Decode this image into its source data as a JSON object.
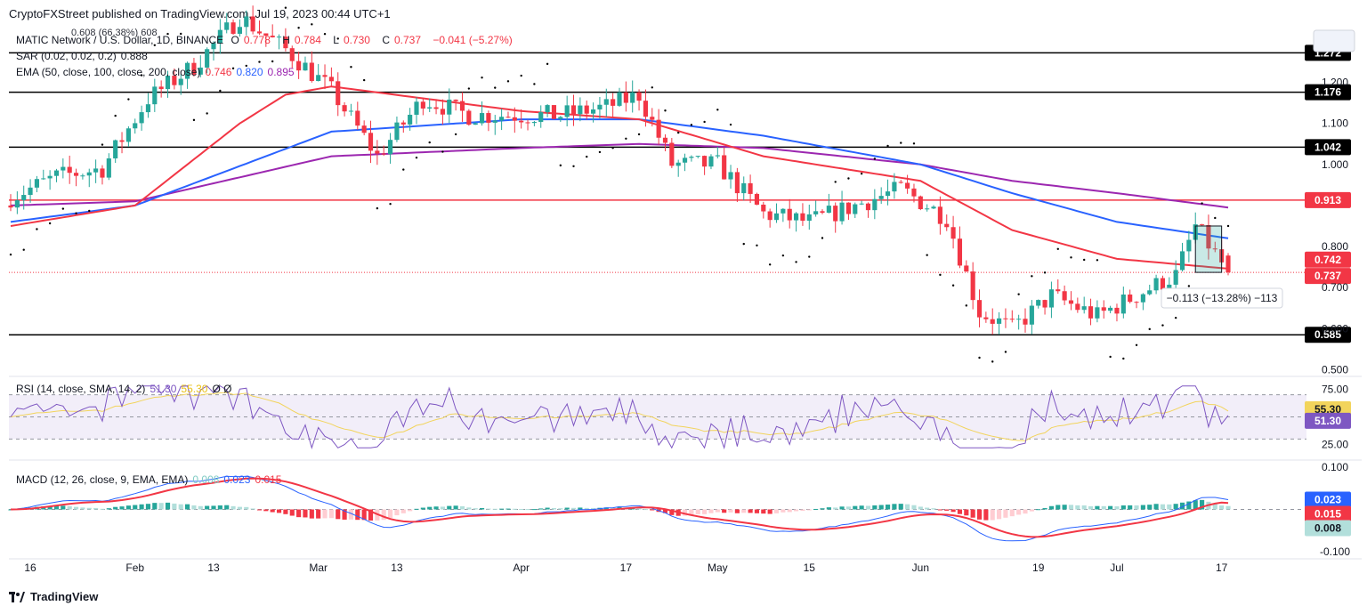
{
  "header": {
    "published": "CryptoFXStreet published on TradingView.com, Jul 19, 2023 00:44 UTC+1"
  },
  "legend": {
    "symbol": "MATIC Network / U.S. Dollar, 1D, BINANCE",
    "o_label": "O",
    "o": "0.778",
    "h_label": "H",
    "h": "0.784",
    "l_label": "L",
    "l": "0.730",
    "c_label": "C",
    "c": "0.737",
    "change": "−0.041 (−5.27%)",
    "overlay_label": "0.608 (66.38%) 608",
    "sar_label": "SAR (0.02, 0.02, 0.2)",
    "sar_value": "0.888",
    "ema_label": "EMA (50, close, 100, close, 200, close)",
    "ema50": "0.746",
    "ema100": "0.820",
    "ema200": "0.895"
  },
  "rsi_legend": {
    "label": "RSI (14, close, SMA, 14, 2)",
    "rsi": "51.30",
    "sma": "55.30",
    "extra": "Ø Ø"
  },
  "macd_legend": {
    "label": "MACD (12, 26, close, 9, EMA, EMA)",
    "hist": "0.008",
    "macd": "0.023",
    "signal": "0.015"
  },
  "measure_label": "−0.113 (−13.28%) −113",
  "footer": {
    "brand": "TradingView"
  },
  "colors": {
    "up": "#26a69a",
    "down": "#f23645",
    "ema50": "#f23645",
    "ema100": "#2962ff",
    "ema200": "#9c27b0",
    "rsi": "#7e57c2",
    "rsi_sma": "#f2d45c",
    "macd": "#2962ff",
    "signal": "#f23645",
    "hist_up": "#26a69a",
    "hist_up_light": "#b2dfdb",
    "hist_down": "#f23645",
    "hist_down_light": "#ffcdd2"
  },
  "chart_data": {
    "type": "candlestick",
    "symbol": "MATIC Network / U.S. Dollar",
    "timeframe": "1D",
    "x_ticks": [
      "16",
      "Feb",
      "13",
      "Mar",
      "13",
      "Apr",
      "17",
      "May",
      "15",
      "Jun",
      "19",
      "Jul",
      "17"
    ],
    "price_axis": {
      "ylim": [
        0.49,
        1.34
      ],
      "ticks": [
        "1.300",
        "1.200",
        "1.100",
        "1.000",
        "0.800",
        "0.700",
        "0.600",
        "0.500"
      ]
    },
    "horizontal_levels": [
      {
        "value": 1.272,
        "label": "1.272",
        "color": "#000000"
      },
      {
        "value": 1.176,
        "label": "1.176",
        "color": "#000000"
      },
      {
        "value": 1.042,
        "label": "1.042",
        "color": "#000000"
      },
      {
        "value": 0.913,
        "label": "0.913",
        "color": "#f23645"
      },
      {
        "value": 0.585,
        "label": "0.585",
        "color": "#000000"
      }
    ],
    "price_badges": [
      {
        "value": 0.742,
        "label": "0.742",
        "color": "#f23645"
      },
      {
        "value": 0.737,
        "label": "0.737",
        "color": "#f23645"
      }
    ],
    "anchors": [
      {
        "x": "Jan 13",
        "close": 0.92
      },
      {
        "x": "Jan 20",
        "close": 0.97
      },
      {
        "x": "Jan 27",
        "close": 0.99
      },
      {
        "x": "Feb 3",
        "close": 1.16
      },
      {
        "x": "Feb 10",
        "close": 1.24
      },
      {
        "x": "Feb 17",
        "close": 1.36
      },
      {
        "x": "Feb 24",
        "close": 1.28
      },
      {
        "x": "Mar 3",
        "close": 1.18
      },
      {
        "x": "Mar 10",
        "close": 1.02
      },
      {
        "x": "Mar 17",
        "close": 1.16
      },
      {
        "x": "Mar 24",
        "close": 1.12
      },
      {
        "x": "Mar 31",
        "close": 1.12
      },
      {
        "x": "Apr 7",
        "close": 1.12
      },
      {
        "x": "Apr 14",
        "close": 1.14
      },
      {
        "x": "Apr 19",
        "close": 1.17
      },
      {
        "x": "Apr 24",
        "close": 1.0
      },
      {
        "x": "May 1",
        "close": 1.0
      },
      {
        "x": "May 8",
        "close": 0.88
      },
      {
        "x": "May 15",
        "close": 0.86
      },
      {
        "x": "May 22",
        "close": 0.9
      },
      {
        "x": "May 29",
        "close": 0.94
      },
      {
        "x": "Jun 5",
        "close": 0.87
      },
      {
        "x": "Jun 10",
        "close": 0.64
      },
      {
        "x": "Jun 15",
        "close": 0.6
      },
      {
        "x": "Jun 21",
        "close": 0.68
      },
      {
        "x": "Jun 28",
        "close": 0.63
      },
      {
        "x": "Jul 5",
        "close": 0.69
      },
      {
        "x": "Jul 10",
        "close": 0.73
      },
      {
        "x": "Jul 13",
        "close": 0.85
      },
      {
        "x": "Jul 18",
        "close": 0.737
      }
    ],
    "ema50_anchors": [
      {
        "x": "Jan 13",
        "v": 0.85
      },
      {
        "x": "Feb 1",
        "v": 0.9
      },
      {
        "x": "Feb 17",
        "v": 1.1
      },
      {
        "x": "Feb 24",
        "v": 1.17
      },
      {
        "x": "Mar 3",
        "v": 1.19
      },
      {
        "x": "Apr 1",
        "v": 1.13
      },
      {
        "x": "Apr 19",
        "v": 1.11
      },
      {
        "x": "May 8",
        "v": 1.02
      },
      {
        "x": "Jun 1",
        "v": 0.96
      },
      {
        "x": "Jun 15",
        "v": 0.84
      },
      {
        "x": "Jul 1",
        "v": 0.77
      },
      {
        "x": "Jul 18",
        "v": 0.746
      }
    ],
    "ema100_anchors": [
      {
        "x": "Jan 13",
        "v": 0.86
      },
      {
        "x": "Feb 1",
        "v": 0.9
      },
      {
        "x": "Mar 3",
        "v": 1.08
      },
      {
        "x": "Apr 1",
        "v": 1.11
      },
      {
        "x": "Apr 19",
        "v": 1.11
      },
      {
        "x": "May 8",
        "v": 1.07
      },
      {
        "x": "Jun 1",
        "v": 1.0
      },
      {
        "x": "Jun 15",
        "v": 0.93
      },
      {
        "x": "Jul 1",
        "v": 0.86
      },
      {
        "x": "Jul 18",
        "v": 0.82
      }
    ],
    "ema200_anchors": [
      {
        "x": "Jan 13",
        "v": 0.9
      },
      {
        "x": "Feb 1",
        "v": 0.91
      },
      {
        "x": "Mar 3",
        "v": 1.02
      },
      {
        "x": "Apr 1",
        "v": 1.04
      },
      {
        "x": "Apr 19",
        "v": 1.05
      },
      {
        "x": "May 8",
        "v": 1.04
      },
      {
        "x": "Jun 1",
        "v": 1.0
      },
      {
        "x": "Jun 15",
        "v": 0.96
      },
      {
        "x": "Jul 1",
        "v": 0.93
      },
      {
        "x": "Jul 18",
        "v": 0.895
      }
    ],
    "rsi": {
      "ylim": [
        15,
        85
      ],
      "overbought": 70,
      "oversold": 30,
      "ticks": [
        "75.00",
        "25.00"
      ],
      "rsi_last": 51.3,
      "sma_last": 55.3
    },
    "macd": {
      "ylim": [
        -0.11,
        0.11
      ],
      "ticks": [
        "0.100",
        "-0.100"
      ],
      "hist_last": 0.008,
      "macd_last": 0.023,
      "signal_last": 0.015
    }
  }
}
